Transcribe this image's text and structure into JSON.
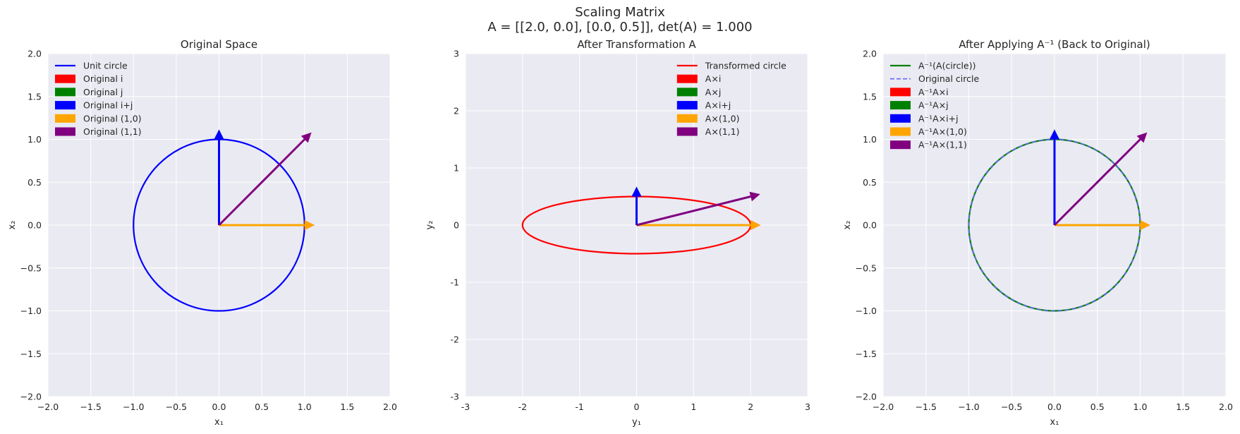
{
  "figure": {
    "title_line1": "Scaling Matrix",
    "title_line2": "A = [[2.0, 0.0], [0.0, 0.5]], det(A) = 1.000"
  },
  "chart_data": [
    {
      "type": "line",
      "title": "Original Space",
      "xlabel": "x₁",
      "ylabel": "x₂",
      "xlim": [
        -2,
        2
      ],
      "ylim": [
        -2,
        2
      ],
      "xticks": [
        -2.0,
        -1.5,
        -1.0,
        -0.5,
        0.0,
        0.5,
        1.0,
        1.5,
        2.0
      ],
      "yticks": [
        -2.0,
        -1.5,
        -1.0,
        -0.5,
        0.0,
        0.5,
        1.0,
        1.5,
        2.0
      ],
      "tick_format": "one_decimal",
      "grid": true,
      "legend_position": "top-left",
      "curves": [
        {
          "kind": "ellipse",
          "rx": 1,
          "ry": 1,
          "color": "#0000ff",
          "dashed": false,
          "legend": "Unit circle"
        }
      ],
      "vectors": [
        {
          "x": 1,
          "y": 0,
          "color": "#ff0000",
          "legend": "Original i"
        },
        {
          "x": 0,
          "y": 1,
          "color": "#008000",
          "legend": "Original j"
        },
        {
          "x": 0,
          "y": 1,
          "color": "#0000ff",
          "legend": "Original i+j"
        },
        {
          "x": 1,
          "y": 0,
          "color": "#ffa500",
          "legend": "Original (1,0)"
        },
        {
          "x": 1,
          "y": 1,
          "color": "#800080",
          "legend": "Original (1,1)"
        }
      ]
    },
    {
      "type": "line",
      "title": "After Transformation A",
      "xlabel": "y₁",
      "ylabel": "y₂",
      "xlim": [
        -3,
        3
      ],
      "ylim": [
        -3,
        3
      ],
      "xticks": [
        -3,
        -2,
        -1,
        0,
        1,
        2,
        3
      ],
      "yticks": [
        -3,
        -2,
        -1,
        0,
        1,
        2,
        3
      ],
      "tick_format": "integer",
      "grid": true,
      "legend_position": "top-right",
      "curves": [
        {
          "kind": "ellipse",
          "rx": 2,
          "ry": 0.5,
          "color": "#ff0000",
          "dashed": false,
          "legend": "Transformed circle"
        }
      ],
      "vectors": [
        {
          "x": 2,
          "y": 0,
          "color": "#ff0000",
          "legend": "A×i"
        },
        {
          "x": 0,
          "y": 0.5,
          "color": "#008000",
          "legend": "A×j"
        },
        {
          "x": 0,
          "y": 0.5,
          "color": "#0000ff",
          "legend": "A×i+j"
        },
        {
          "x": 2,
          "y": 0,
          "color": "#ffa500",
          "legend": "A×(1,0)"
        },
        {
          "x": 2,
          "y": 0.5,
          "color": "#800080",
          "legend": "A×(1,1)"
        }
      ]
    },
    {
      "type": "line",
      "title": "After Applying A⁻¹ (Back to Original)",
      "xlabel": "x₁",
      "ylabel": "x₂",
      "xlim": [
        -2,
        2
      ],
      "ylim": [
        -2,
        2
      ],
      "xticks": [
        -2.0,
        -1.5,
        -1.0,
        -0.5,
        0.0,
        0.5,
        1.0,
        1.5,
        2.0
      ],
      "yticks": [
        -2.0,
        -1.5,
        -1.0,
        -0.5,
        0.0,
        0.5,
        1.0,
        1.5,
        2.0
      ],
      "tick_format": "one_decimal",
      "grid": true,
      "legend_position": "top-left",
      "curves": [
        {
          "kind": "ellipse",
          "rx": 1,
          "ry": 1,
          "color": "#008000",
          "dashed": false,
          "legend": "A⁻¹(A(circle))"
        },
        {
          "kind": "ellipse",
          "rx": 1,
          "ry": 1,
          "color": "#6666ff",
          "dashed": true,
          "legend": "Original circle"
        }
      ],
      "vectors": [
        {
          "x": 1,
          "y": 0,
          "color": "#ff0000",
          "legend": "A⁻¹A×i"
        },
        {
          "x": 0,
          "y": 1,
          "color": "#008000",
          "legend": "A⁻¹A×j"
        },
        {
          "x": 0,
          "y": 1,
          "color": "#0000ff",
          "legend": "A⁻¹A×i+j"
        },
        {
          "x": 1,
          "y": 0,
          "color": "#ffa500",
          "legend": "A⁻¹A×(1,0)"
        },
        {
          "x": 1,
          "y": 1,
          "color": "#800080",
          "legend": "A⁻¹A×(1,1)"
        }
      ]
    }
  ]
}
